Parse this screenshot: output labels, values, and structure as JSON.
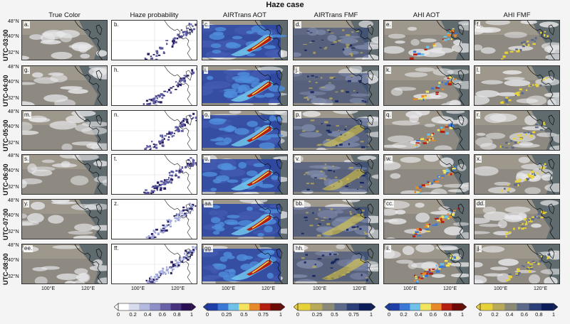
{
  "figure_title": "Haze case",
  "columns": [
    {
      "title": "True Color",
      "kind": "truecolor"
    },
    {
      "title": "Haze probability",
      "kind": "hazeprob"
    },
    {
      "title": "AIRTrans AOT",
      "kind": "aot_rb"
    },
    {
      "title": "AIRTrans FMF",
      "kind": "fmf"
    },
    {
      "title": "AHI AOT",
      "kind": "aot_ahi"
    },
    {
      "title": "AHI FMF",
      "kind": "fmf_ahi"
    }
  ],
  "rows": [
    "UTC-03:00",
    "UTC-04:00",
    "UTC-05:00",
    "UTC-06:00",
    "UTC-07:00",
    "UTC-08:00"
  ],
  "panel_letters": [
    [
      "a.",
      "b.",
      "c.",
      "d.",
      "e.",
      "f."
    ],
    [
      "g.",
      "h.",
      "i.",
      "j.",
      "k.",
      "l."
    ],
    [
      "m.",
      "n.",
      "o.",
      "p.",
      "q.",
      "r."
    ],
    [
      "s.",
      "t.",
      "u.",
      "v.",
      "w.",
      "x."
    ],
    [
      "y.",
      "z.",
      "aa.",
      "bb.",
      "cc.",
      "dd."
    ],
    [
      "ee.",
      "ff.",
      "gg.",
      "hh.",
      "ii.",
      "jj."
    ]
  ],
  "lat_ticks": [
    "48°N",
    "40°N",
    "32°N"
  ],
  "lon_ticks": [
    "100°E",
    "120°E"
  ],
  "colorbars": [
    {
      "labels": [
        "0",
        "0.2",
        "0.4",
        "0.6",
        "0.8",
        "1"
      ],
      "colors": [
        "#ffffff",
        "#d9dcef",
        "#b4b9de",
        "#8e8fc5",
        "#6a62a8",
        "#46327f",
        "#2a0f55"
      ]
    },
    {
      "labels": [
        "0",
        "0.25",
        "0.5",
        "0.75",
        "1"
      ],
      "colors": [
        "#1f3fa8",
        "#3a78d6",
        "#6fc1e8",
        "#f2e45c",
        "#e88a2a",
        "#b51f12",
        "#6e0a05"
      ]
    },
    {
      "labels": [
        "0",
        "0.25",
        "0.5",
        "0.75",
        "1"
      ],
      "colors": [
        "#e8d23a",
        "#b8aa5a",
        "#8a8a78",
        "#5c6a8a",
        "#2c3f78",
        "#0d1d5c"
      ]
    },
    {
      "labels": [
        "0",
        "0.2",
        "0.4",
        "0.6",
        "0.8",
        "1"
      ],
      "colors": [
        "#1f3fa8",
        "#3a78d6",
        "#6fc1e8",
        "#f2e45c",
        "#e88a2a",
        "#b51f12",
        "#6e0a05"
      ]
    },
    {
      "labels": [
        "0",
        "0.2",
        "0.4",
        "0.6",
        "0.8",
        "1"
      ],
      "colors": [
        "#e8d23a",
        "#b8aa5a",
        "#8a8a78",
        "#5c6a8a",
        "#2c3f78",
        "#0d1d5c"
      ]
    }
  ]
}
